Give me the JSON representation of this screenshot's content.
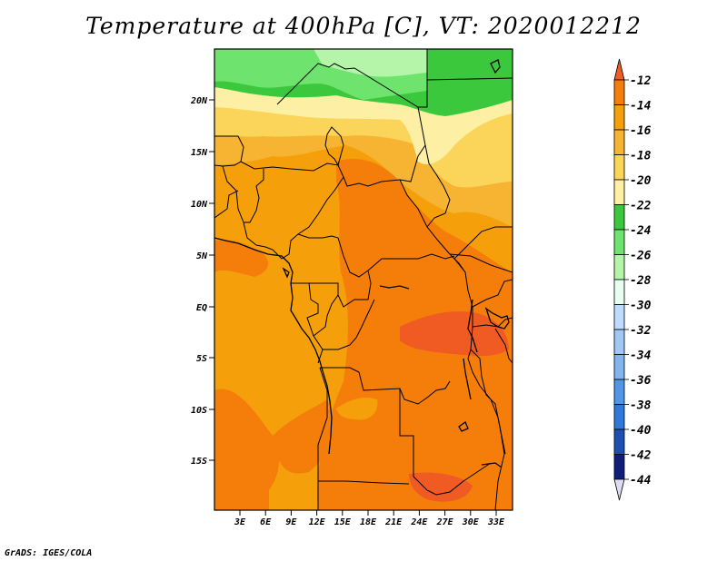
{
  "title": "Temperature at 400hPa [C], VT: 2020012212",
  "credit": "GrADS: IGES/COLA",
  "lat_labels": [
    "20N",
    "15N",
    "10N",
    "5N",
    "EQ",
    "5S",
    "10S",
    "15S"
  ],
  "lon_labels": [
    "3E",
    "6E",
    "9E",
    "12E",
    "15E",
    "18E",
    "21E",
    "24E",
    "27E",
    "30E",
    "33E"
  ],
  "colorbar": {
    "labels": [
      "-12",
      "-14",
      "-16",
      "-18",
      "-20",
      "-22",
      "-24",
      "-26",
      "-28",
      "-30",
      "-32",
      "-34",
      "-36",
      "-38",
      "-40",
      "-42",
      "-44"
    ],
    "colors": [
      "#f05a23",
      "#f57e0a",
      "#f5a00a",
      "#f7b433",
      "#fbd45a",
      "#fdf0a5",
      "#3cc83c",
      "#6ee46e",
      "#b4f5aa",
      "#e6fff0",
      "#bedcff",
      "#a0c8f5",
      "#82b4f0",
      "#5096e6",
      "#2f78dc",
      "#1e50b4",
      "#0f1e78"
    ],
    "top_arrow_color": "#f05a23",
    "bottom_arrow_color": "#dcdcf5"
  },
  "map_colors": {
    "fill_default": "#f5a00a",
    "fill_warm": "#f57e0a",
    "fill_warmer": "#f05a23",
    "fill_mid": "#f7b433",
    "fill_light": "#fbd45a",
    "fill_pale": "#fdf0a5",
    "fill_green": "#3cc83c",
    "fill_lightgreen": "#6ee46e",
    "fill_palegreen": "#b4f5aa"
  }
}
